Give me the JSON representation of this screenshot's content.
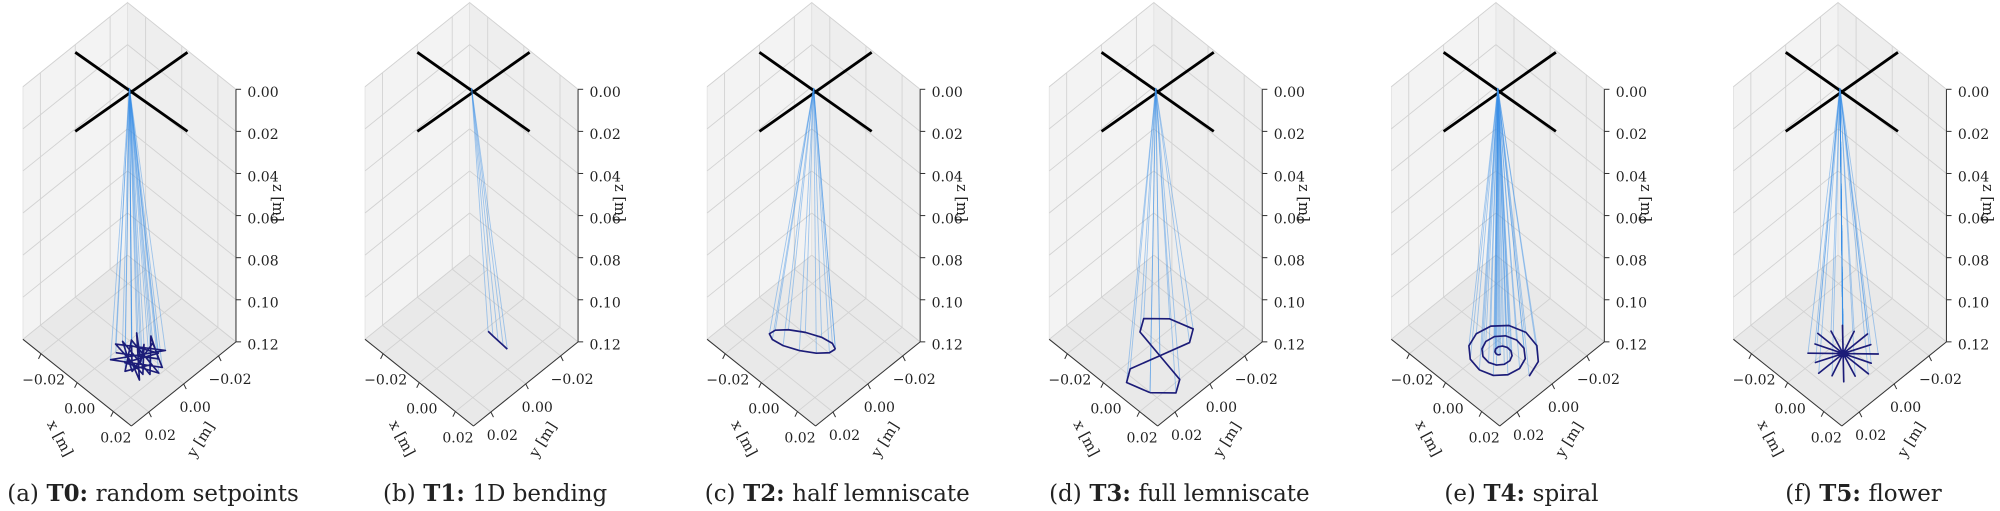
{
  "chart_data": [
    {
      "type": "line3d",
      "subfigure": "(a)",
      "caption_bold": "T0:",
      "caption": "random setpoints",
      "xlabel": "x [m]",
      "ylabel": "y [m]",
      "zlabel": "z [m]",
      "xlim": [
        -0.03,
        0.03
      ],
      "ylim": [
        -0.03,
        0.03
      ],
      "zlim": [
        0,
        0.12
      ],
      "zaxis_inverted": true,
      "grid": true,
      "xticks": [
        {
          "value": -0.02,
          "label": "−0.02"
        },
        {
          "value": 0,
          "label": "0.00"
        },
        {
          "value": 0.02,
          "label": "0.02"
        }
      ],
      "yticks": [
        {
          "value": -0.02,
          "label": "−0.02"
        },
        {
          "value": 0,
          "label": "0.00"
        },
        {
          "value": 0.02,
          "label": "0.02"
        }
      ],
      "zticks": [
        {
          "value": 0,
          "label": "0.00"
        },
        {
          "value": 0.02,
          "label": "0.02"
        },
        {
          "value": 0.04,
          "label": "0.04"
        },
        {
          "value": 0.06,
          "label": "0.06"
        },
        {
          "value": 0.08,
          "label": "0.08"
        },
        {
          "value": 0.1,
          "label": "0.10"
        },
        {
          "value": 0.12,
          "label": "0.12"
        }
      ],
      "series": [
        {
          "color": "#1c1c78",
          "rod_color": "#3a8ee6",
          "tip_z": 0.115,
          "x": [
            0.004,
            0.018,
            0.008,
            0.021,
            0.002,
            0.015,
            0.011,
            0.022,
            0.005,
            0.017,
            0.001,
            0.019,
            0.009,
            0.014,
            0.003,
            0.02,
            0.012,
            0.006,
            0.016,
            0.01,
            0.023,
            0.004,
            0.013,
            0.018
          ],
          "y": [
            0.012,
            0.002,
            -0.004,
            0.01,
            0.006,
            0.014,
            -0.002,
            0.004,
            0.016,
            -0.003,
            0.009,
            0.012,
            0.001,
            0.008,
            -0.001,
            0.015,
            0.011,
            0.005,
            0.0,
            0.013,
            0.007,
            0.003,
            0.016,
            0.006
          ]
        }
      ]
    },
    {
      "type": "line3d",
      "subfigure": "(b)",
      "caption_bold": "T1:",
      "caption": "1D bending",
      "xlabel": "x [m]",
      "ylabel": "y [m]",
      "zlabel": "z [m]",
      "xlim": [
        -0.03,
        0.03
      ],
      "ylim": [
        -0.03,
        0.03
      ],
      "zlim": [
        0,
        0.12
      ],
      "zaxis_inverted": true,
      "grid": true,
      "xticks": [
        {
          "value": -0.02,
          "label": "−0.02"
        },
        {
          "value": 0,
          "label": "0.00"
        },
        {
          "value": 0.02,
          "label": "0.02"
        }
      ],
      "yticks": [
        {
          "value": -0.02,
          "label": "−0.02"
        },
        {
          "value": 0,
          "label": "0.00"
        },
        {
          "value": 0.02,
          "label": "0.02"
        }
      ],
      "zticks": [
        {
          "value": 0,
          "label": "0.00"
        },
        {
          "value": 0.02,
          "label": "0.02"
        },
        {
          "value": 0.04,
          "label": "0.04"
        },
        {
          "value": 0.06,
          "label": "0.06"
        },
        {
          "value": 0.08,
          "label": "0.08"
        },
        {
          "value": 0.1,
          "label": "0.10"
        },
        {
          "value": 0.12,
          "label": "0.12"
        }
      ],
      "series": [
        {
          "color": "#1c1c78",
          "rod_color": "#3a8ee6",
          "tip_z": 0.115,
          "x": [
            0.005,
            0.008,
            0.011,
            0.014,
            0.0165
          ],
          "y": [
            -0.0043,
            -0.004,
            -0.0038,
            -0.0036,
            -0.0034
          ]
        }
      ]
    },
    {
      "type": "line3d",
      "subfigure": "(c)",
      "caption_bold": "T2:",
      "caption": "half lemniscate",
      "xlabel": "x [m]",
      "ylabel": "y [m]",
      "zlabel": "z [m]",
      "xlim": [
        -0.03,
        0.03
      ],
      "ylim": [
        -0.03,
        0.03
      ],
      "zlim": [
        0,
        0.12
      ],
      "zaxis_inverted": true,
      "grid": true,
      "xticks": [
        {
          "value": -0.02,
          "label": "−0.02"
        },
        {
          "value": 0,
          "label": "0.00"
        },
        {
          "value": 0.02,
          "label": "0.02"
        }
      ],
      "yticks": [
        {
          "value": -0.02,
          "label": "−0.02"
        },
        {
          "value": 0,
          "label": "0.00"
        },
        {
          "value": 0.02,
          "label": "0.02"
        }
      ],
      "zticks": [
        {
          "value": 0,
          "label": "0.00"
        },
        {
          "value": 0.02,
          "label": "0.02"
        },
        {
          "value": 0.04,
          "label": "0.04"
        },
        {
          "value": 0.06,
          "label": "0.06"
        },
        {
          "value": 0.08,
          "label": "0.08"
        },
        {
          "value": 0.1,
          "label": "0.10"
        },
        {
          "value": 0.12,
          "label": "0.12"
        }
      ],
      "series": [
        {
          "color": "#1c1c78",
          "rod_color": "#3a8ee6",
          "tip_z": 0.115,
          "x": [
            0.0126,
            0.0122,
            0.0087,
            0.0031,
            -0.0031,
            -0.0082,
            -0.011,
            -0.0106,
            -0.0071,
            -0.0015,
            0.0047,
            0.0098,
            0.0126
          ],
          "y": [
            0.0006,
            0.0036,
            0.0075,
            0.0114,
            0.0143,
            0.0152,
            0.014,
            0.011,
            0.0071,
            0.0032,
            0.0003,
            -0.0006,
            0.0006
          ]
        }
      ]
    },
    {
      "type": "line3d",
      "subfigure": "(d)",
      "caption_bold": "T3:",
      "caption": "full lemniscate",
      "xlabel": "x [m]",
      "ylabel": "y [m]",
      "zlabel": "z [m]",
      "xlim": [
        -0.03,
        0.03
      ],
      "ylim": [
        -0.03,
        0.03
      ],
      "zlim": [
        0,
        0.12
      ],
      "zaxis_inverted": true,
      "grid": true,
      "xticks": [
        {
          "value": -0.02,
          "label": "−0.02"
        },
        {
          "value": 0,
          "label": "0.00"
        },
        {
          "value": 0.02,
          "label": "0.02"
        }
      ],
      "yticks": [
        {
          "value": -0.02,
          "label": "−0.02"
        },
        {
          "value": 0,
          "label": "0.00"
        },
        {
          "value": 0.02,
          "label": "0.02"
        }
      ],
      "zticks": [
        {
          "value": 0,
          "label": "0.00"
        },
        {
          "value": 0.02,
          "label": "0.02"
        },
        {
          "value": 0.04,
          "label": "0.04"
        },
        {
          "value": 0.06,
          "label": "0.06"
        },
        {
          "value": 0.08,
          "label": "0.08"
        },
        {
          "value": 0.1,
          "label": "0.10"
        },
        {
          "value": 0.12,
          "label": "0.12"
        }
      ],
      "series": [
        {
          "color": "#1c1c78",
          "rod_color": "#3a8ee6",
          "tip_z": 0.115,
          "x": [
            0.02,
            0.0273,
            0.0237,
            0.01,
            -0.0037,
            -0.0073,
            0.0,
            0.01,
            0.0137,
            0.01,
            0.0063,
            0.01,
            0.02
          ],
          "y": [
            0.024,
            0.0167,
            0.0108,
            0.008,
            0.0052,
            -0.0007,
            -0.008,
            -0.0111,
            -0.0052,
            0.008,
            0.0212,
            0.0271,
            0.024
          ]
        }
      ]
    },
    {
      "type": "line3d",
      "subfigure": "(e)",
      "caption_bold": "T4:",
      "caption": "spiral",
      "xlabel": "x [m]",
      "ylabel": "y [m]",
      "zlabel": "z [m]",
      "xlim": [
        -0.03,
        0.03
      ],
      "ylim": [
        -0.03,
        0.03
      ],
      "zlim": [
        0,
        0.12
      ],
      "zaxis_inverted": true,
      "grid": true,
      "xticks": [
        {
          "value": -0.02,
          "label": "−0.02"
        },
        {
          "value": 0,
          "label": "0.00"
        },
        {
          "value": 0.02,
          "label": "0.02"
        }
      ],
      "yticks": [
        {
          "value": -0.02,
          "label": "−0.02"
        },
        {
          "value": 0,
          "label": "0.00"
        },
        {
          "value": 0.02,
          "label": "0.02"
        }
      ],
      "zticks": [
        {
          "value": 0,
          "label": "0.00"
        },
        {
          "value": 0.02,
          "label": "0.02"
        },
        {
          "value": 0.04,
          "label": "0.04"
        },
        {
          "value": 0.06,
          "label": "0.06"
        },
        {
          "value": 0.08,
          "label": "0.08"
        },
        {
          "value": 0.1,
          "label": "0.10"
        },
        {
          "value": 0.12,
          "label": "0.12"
        }
      ],
      "series": [
        {
          "color": "#1c1c78",
          "rod_color": "#3a8ee6",
          "tip_z": 0.115,
          "x": [
            0.009,
            0.009,
            0.0086,
            0.0077,
            0.0067,
            0.0059,
            0.0059,
            0.0068,
            0.0086,
            0.0108,
            0.0128,
            0.0139,
            0.0136,
            0.0117,
            0.0086,
            0.005,
            0.0021,
            0.0006,
            0.0013,
            0.0042,
            0.0086,
            0.0135,
            0.0175,
            0.0193,
            0.0182,
            0.0144,
            0.0086,
            0.0024,
            -0.0026,
            -0.0047,
            -0.0033,
            0.0015,
            0.0086,
            0.0162,
            0.0221,
            0.0246
          ],
          "y": [
            0.0077,
            0.0083,
            0.0088,
            0.009,
            0.0086,
            0.0075,
            0.0059,
            0.0044,
            0.0035,
            0.0037,
            0.0051,
            0.0075,
            0.0104,
            0.0129,
            0.0142,
            0.0137,
            0.0113,
            0.0075,
            0.0033,
            -0.0002,
            -0.0018,
            -0.001,
            0.0024,
            0.0075,
            0.0131,
            0.0175,
            0.0195,
            0.0183,
            0.0139,
            0.0075,
            0.0006,
            -0.0048,
            -0.0072,
            -0.0056,
            -0.0003,
            0.0075
          ]
        }
      ]
    },
    {
      "type": "line3d",
      "subfigure": "(f)",
      "caption_bold": "T5:",
      "caption": "flower",
      "xlabel": "x [m]",
      "ylabel": "y [m]",
      "zlabel": "z [m]",
      "xlim": [
        -0.03,
        0.03
      ],
      "ylim": [
        -0.03,
        0.03
      ],
      "zlim": [
        0,
        0.12
      ],
      "zaxis_inverted": true,
      "grid": true,
      "xticks": [
        {
          "value": -0.02,
          "label": "−0.02"
        },
        {
          "value": 0,
          "label": "0.00"
        },
        {
          "value": 0.02,
          "label": "0.02"
        }
      ],
      "yticks": [
        {
          "value": -0.02,
          "label": "−0.02"
        },
        {
          "value": 0,
          "label": "0.00"
        },
        {
          "value": 0.02,
          "label": "0.02"
        }
      ],
      "zticks": [
        {
          "value": 0,
          "label": "0.00"
        },
        {
          "value": 0.02,
          "label": "0.02"
        },
        {
          "value": 0.04,
          "label": "0.04"
        },
        {
          "value": 0.06,
          "label": "0.06"
        },
        {
          "value": 0.08,
          "label": "0.08"
        },
        {
          "value": 0.1,
          "label": "0.10"
        },
        {
          "value": 0.12,
          "label": "0.12"
        }
      ],
      "series": [
        {
          "color": "#1c1c78",
          "rod_color": "#3a8ee6",
          "tip_z": 0.115,
          "x": [
            0.009,
            0.023,
            0.009,
            0.0201,
            0.009,
            0.0189,
            0.009,
            0.0136,
            0.009,
            0.009,
            0.009,
            0.0044,
            0.009,
            -0.0009,
            0.009,
            -0.0021,
            0.009,
            -0.005,
            0.009,
            -0.0021,
            0.009,
            -0.0009,
            0.009,
            0.0044,
            0.009,
            0.009,
            0.009,
            0.0136,
            0.009,
            0.0189,
            0.009,
            0.0201,
            0.009
          ],
          "y": [
            0.0075,
            0.0075,
            0.0075,
            0.0121,
            0.0075,
            0.0174,
            0.0075,
            0.0186,
            0.0075,
            0.0215,
            0.0075,
            0.0186,
            0.0075,
            0.0174,
            0.0075,
            0.0121,
            0.0075,
            0.0075,
            0.0075,
            0.0029,
            0.0075,
            -0.0024,
            0.0075,
            -0.0036,
            0.0075,
            -0.0065,
            0.0075,
            -0.0036,
            0.0075,
            -0.0024,
            0.0075,
            0.0029,
            0.0075
          ]
        }
      ]
    }
  ]
}
